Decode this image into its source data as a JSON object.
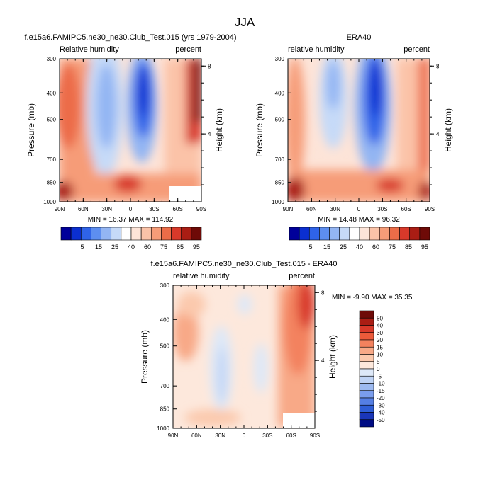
{
  "page_title": "JJA",
  "chart_data": [
    {
      "type": "heatmap",
      "title": "f.e15a6.FAMIPC5.ne30_ne30.Club_Test.015 (yrs 1979-2004)",
      "left_label": "Relative humidity",
      "right_label": "percent",
      "ylabel": "Pressure (mb)",
      "ylabel_right": "Height (km)",
      "yticks": [
        "300",
        "400",
        "500",
        "700",
        "850",
        "1000"
      ],
      "yticks_right": [
        "8",
        "4"
      ],
      "xticks": [
        "90N",
        "60N",
        "30N",
        "0",
        "30S",
        "60S",
        "90S"
      ],
      "stats": "MIN = 16.37   MAX = 114.92",
      "min": 16.37,
      "max": 114.92,
      "colorbar_labels": [
        "5",
        "15",
        "25",
        "40",
        "60",
        "75",
        "85",
        "95"
      ]
    },
    {
      "type": "heatmap",
      "title": "ERA40",
      "left_label": "relative humidity",
      "right_label": "percent",
      "ylabel": "Pressure (mb)",
      "ylabel_right": "Height (km)",
      "yticks": [
        "300",
        "400",
        "500",
        "700",
        "850",
        "1000"
      ],
      "yticks_right": [
        "8",
        "4"
      ],
      "xticks": [
        "90N",
        "60N",
        "30N",
        "0",
        "30S",
        "60S",
        "90S"
      ],
      "stats": "MIN = 14.48   MAX = 96.32",
      "min": 14.48,
      "max": 96.32,
      "colorbar_labels": [
        "5",
        "15",
        "25",
        "40",
        "60",
        "75",
        "85",
        "95"
      ]
    },
    {
      "type": "heatmap",
      "title": "f.e15a6.FAMIPC5.ne30_ne30.Club_Test.015 - ERA40",
      "left_label": "relative humidity",
      "right_label": "percent",
      "ylabel": "Pressure (mb)",
      "ylabel_right": "Height (km)",
      "yticks": [
        "300",
        "400",
        "500",
        "700",
        "850",
        "1000"
      ],
      "yticks_right": [
        "8",
        "4"
      ],
      "xticks": [
        "90N",
        "60N",
        "30N",
        "0",
        "30S",
        "60S",
        "90S"
      ],
      "stats": "MIN = -9.90   MAX = 35.35",
      "min": -9.9,
      "max": 35.35,
      "colorbar_labels": [
        "50",
        "40",
        "30",
        "20",
        "15",
        "10",
        "5",
        "0",
        "-5",
        "-10",
        "-15",
        "-20",
        "-30",
        "-40",
        "-50"
      ]
    }
  ],
  "colors": {
    "rh_palette": [
      "#00009a",
      "#0b2fd0",
      "#2f63e8",
      "#5d8ef0",
      "#93b5f3",
      "#c6daf8",
      "#ffffff",
      "#fde4d8",
      "#fbc3a8",
      "#f69c78",
      "#ec6c48",
      "#d8392a",
      "#aa1d14",
      "#6e0a07"
    ],
    "diff_palette": [
      "#6e0a07",
      "#aa1d14",
      "#d8392a",
      "#ec5a3a",
      "#f3825e",
      "#f8a987",
      "#fbc9ad",
      "#fde8dc",
      "#dde8f8",
      "#bfd3f5",
      "#9dbaf1",
      "#7a9ded",
      "#557fe4",
      "#2f5ed6",
      "#1a36b8",
      "#000c84"
    ]
  }
}
